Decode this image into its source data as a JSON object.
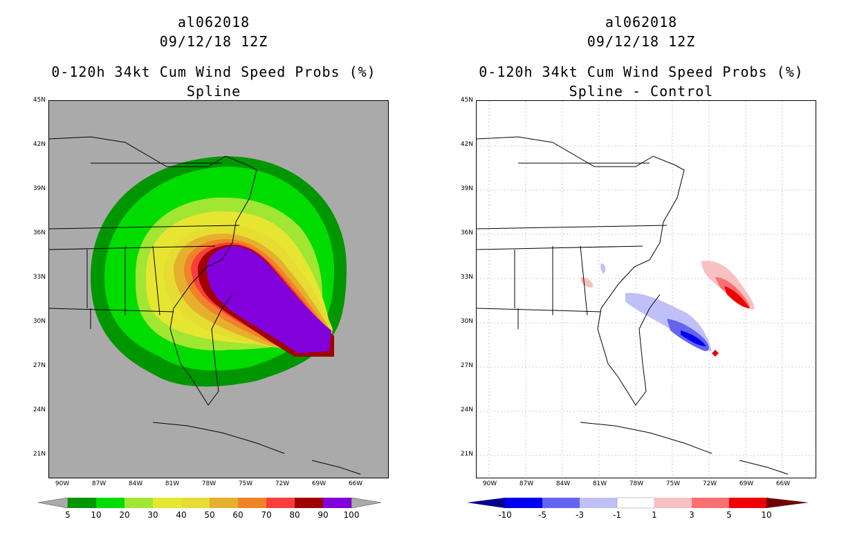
{
  "colors": {
    "land_bg": "#aaaaaa",
    "ocean_bg": "#ffffff",
    "probs": [
      "#009600",
      "#00dc00",
      "#a0e632",
      "#e6e632",
      "#e6dc32",
      "#e6af2d",
      "#f08228",
      "#fa3c3c",
      "#a00000",
      "#8200dc"
    ],
    "diff": [
      "#00008c",
      "#0000f0",
      "#6464f0",
      "#c0c0f8",
      "#ffffff",
      "#f8c0c0",
      "#f87070",
      "#f00000",
      "#700000"
    ]
  },
  "left_panel": {
    "title1": "al062018",
    "title2": "09/12/18 12Z",
    "title3": "0-120h 34kt Cum Wind Speed Probs (%)",
    "title4": "Spline",
    "lat_labels": [
      "45N",
      "42N",
      "39N",
      "36N",
      "33N",
      "30N",
      "27N",
      "24N",
      "21N"
    ],
    "lon_labels": [
      "90W",
      "87W",
      "84W",
      "81W",
      "78W",
      "75W",
      "72W",
      "69W",
      "66W"
    ],
    "colorbar_labels": [
      "5",
      "10",
      "20",
      "30",
      "40",
      "50",
      "60",
      "70",
      "80",
      "90",
      "100"
    ]
  },
  "right_panel": {
    "title1": "al062018",
    "title2": "09/12/18 12Z",
    "title3": "0-120h 34kt Cum Wind Speed Probs (%)",
    "title4": "Spline - Control",
    "lat_labels": [
      "45N",
      "42N",
      "39N",
      "36N",
      "33N",
      "30N",
      "27N",
      "24N",
      "21N"
    ],
    "lon_labels": [
      "90W",
      "87W",
      "84W",
      "81W",
      "78W",
      "75W",
      "72W",
      "69W",
      "66W"
    ],
    "colorbar_labels": [
      "-10",
      "-5",
      "-3",
      "-1",
      "1",
      "3",
      "5",
      "10"
    ]
  }
}
